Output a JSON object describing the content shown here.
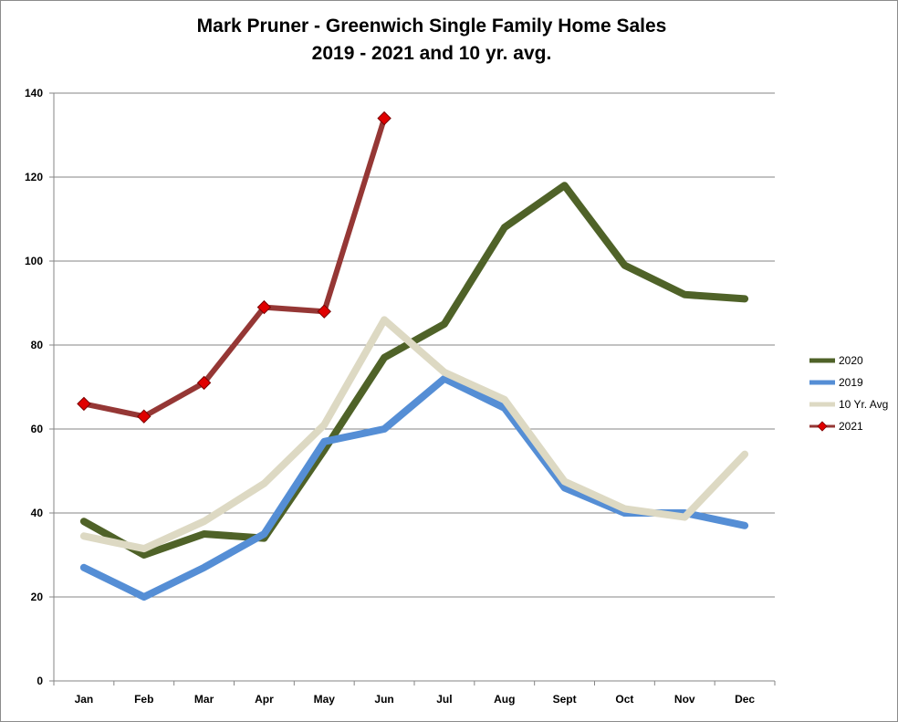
{
  "chart_data": {
    "type": "line",
    "title": "Mark Pruner - Greenwich Single Family Home Sales",
    "subtitle": "2019 - 2021 and 10 yr. avg.",
    "xlabel": "",
    "ylabel": "",
    "categories": [
      "Jan",
      "Feb",
      "Mar",
      "Apr",
      "May",
      "Jun",
      "Jul",
      "Aug",
      "Sept",
      "Oct",
      "Nov",
      "Dec"
    ],
    "ylim": [
      0,
      140
    ],
    "yticks": [
      0,
      20,
      40,
      60,
      80,
      100,
      120,
      140
    ],
    "grid": true,
    "legend_position": "right",
    "series": [
      {
        "name": "2020",
        "color": "#4f6228",
        "marker": "none",
        "values": [
          38,
          30,
          35,
          34,
          55,
          77,
          85,
          108,
          118,
          99,
          92,
          91
        ]
      },
      {
        "name": "2019",
        "color": "#558ed5",
        "marker": "none",
        "values": [
          27,
          20,
          27,
          35,
          57,
          60,
          72,
          65,
          46,
          40,
          40,
          37
        ]
      },
      {
        "name": "10 Yr. Avg",
        "color": "#ddd9c3",
        "marker": "none",
        "values": [
          34.5,
          31.5,
          38,
          47,
          61,
          86,
          73.5,
          67,
          47.5,
          41,
          39,
          54
        ]
      },
      {
        "name": "2021",
        "color": "#953735",
        "marker": "diamond",
        "marker_color": "#e00000",
        "values": [
          66,
          63,
          71,
          89,
          88,
          134,
          null,
          null,
          null,
          null,
          null,
          null
        ]
      }
    ]
  }
}
